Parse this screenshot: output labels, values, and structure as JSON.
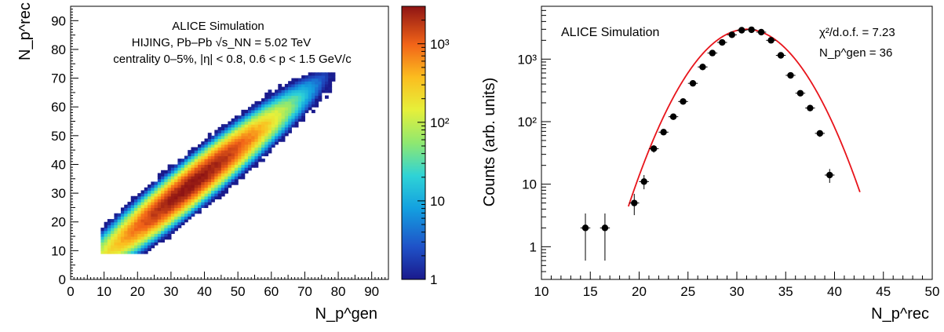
{
  "chart_data": [
    {
      "type": "heatmap",
      "x_label": "N_p^gen",
      "y_label": "N_p^rec",
      "x_axis": {
        "min": 0,
        "max": 95,
        "ticks": [
          "0",
          "10",
          "20",
          "30",
          "40",
          "50",
          "60",
          "70",
          "80",
          "90"
        ]
      },
      "y_axis": {
        "min": 0,
        "max": 95,
        "ticks": [
          "0",
          "10",
          "20",
          "30",
          "40",
          "50",
          "60",
          "70",
          "80",
          "90"
        ]
      },
      "z_axis": {
        "scale": "log",
        "min": 1,
        "max": 3000,
        "ticks": [
          "1",
          "10",
          "10²",
          "10³"
        ]
      },
      "annotations": [
        "ALICE Simulation",
        "HIJING, Pb–Pb √s_NN = 5.02 TeV",
        "centrality 0–5%, |η| < 0.8, 0.6 < p < 1.5 GeV/c"
      ],
      "distribution": {
        "shape": "bivariate gaussian",
        "mean_x": 36,
        "mean_y": 33,
        "sigma_x": 10.5,
        "sigma_y": 10,
        "correlation": 0.96,
        "peak_count": 3000,
        "x_range": [
          9,
          79
        ],
        "y_range": [
          9,
          72
        ],
        "bin_width": 1
      }
    },
    {
      "type": "scatter",
      "x_label": "N_p^rec",
      "y_label": "Counts (arb. units)",
      "x_axis": {
        "min": 10,
        "max": 50,
        "ticks": [
          "10",
          "15",
          "20",
          "25",
          "30",
          "35",
          "40",
          "45",
          "50"
        ]
      },
      "y_axis": {
        "scale": "log",
        "min": 0.3,
        "max": 7000,
        "ticks": [
          "1",
          "10",
          "10²",
          "10³"
        ]
      },
      "annotations": [
        "ALICE Simulation",
        "χ²/d.o.f. = 7.23",
        "N_p^gen = 36"
      ],
      "series": [
        {
          "points": [
            {
              "x": 14.5,
              "y": 2,
              "err": [
                0.6,
                3.4
              ]
            },
            {
              "x": 16.5,
              "y": 2,
              "err": [
                0.6,
                3.4
              ]
            },
            {
              "x": 19.5,
              "y": 5,
              "err": [
                3.2,
                7
              ]
            },
            {
              "x": 20.5,
              "y": 11,
              "err": [
                8.3,
                14
              ]
            },
            {
              "x": 21.5,
              "y": 37,
              "err": [
                32,
                42
              ]
            },
            {
              "x": 22.5,
              "y": 68,
              "err": [
                61,
                75
              ]
            },
            {
              "x": 23.5,
              "y": 120,
              "err": [
                111,
                129
              ]
            },
            {
              "x": 24.5,
              "y": 210,
              "err": [
                198,
                222
              ]
            },
            {
              "x": 25.5,
              "y": 410,
              "err": [
                390,
                430
              ]
            },
            {
              "x": 26.5,
              "y": 750,
              "err": [
                722,
                778
              ]
            },
            {
              "x": 27.5,
              "y": 1250,
              "err": [
                1215,
                1285
              ]
            },
            {
              "x": 28.5,
              "y": 1850,
              "err": [
                1806,
                1894
              ]
            },
            {
              "x": 29.5,
              "y": 2450,
              "err": [
                2400,
                2500
              ]
            },
            {
              "x": 30.5,
              "y": 2900,
              "err": [
                2846,
                2954
              ]
            },
            {
              "x": 31.5,
              "y": 2950,
              "err": [
                2895,
                3005
              ]
            },
            {
              "x": 32.5,
              "y": 2700,
              "err": [
                2648,
                2752
              ]
            },
            {
              "x": 33.5,
              "y": 2000,
              "err": [
                1955,
                2045
              ]
            },
            {
              "x": 34.5,
              "y": 1150,
              "err": [
                1116,
                1184
              ]
            },
            {
              "x": 35.5,
              "y": 550,
              "err": [
                527,
                573
              ]
            },
            {
              "x": 36.5,
              "y": 285,
              "err": [
                268,
                302
              ]
            },
            {
              "x": 37.5,
              "y": 165,
              "err": [
                152,
                178
              ]
            },
            {
              "x": 38.5,
              "y": 65,
              "err": [
                57,
                73
              ]
            },
            {
              "x": 39.5,
              "y": 14,
              "err": [
                10.5,
                17.5
              ]
            }
          ]
        },
        {
          "type": "line",
          "shape": "gaussian",
          "amplitude": 3000,
          "mean": 31,
          "sigma": 3.35,
          "x_range": [
            18.9,
            42.6
          ],
          "color": "#e8141b"
        }
      ]
    }
  ]
}
